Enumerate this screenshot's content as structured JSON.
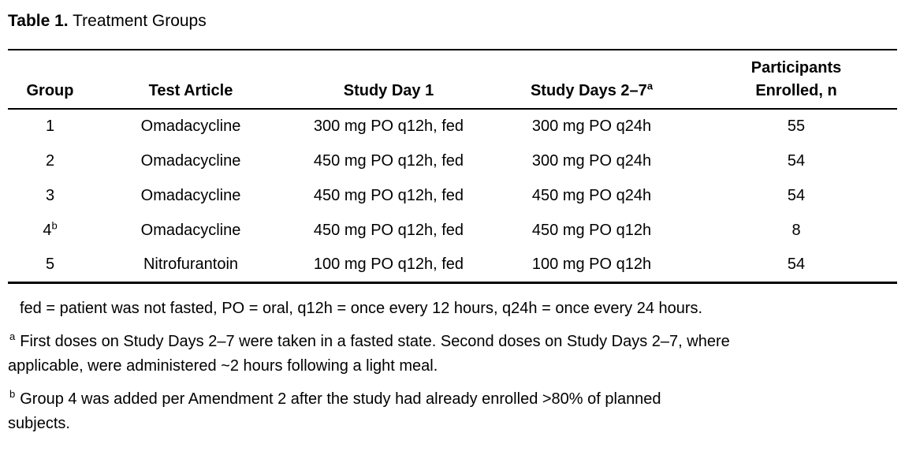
{
  "title": {
    "label": "Table 1.",
    "text": "Treatment Groups"
  },
  "table": {
    "header": {
      "group": "Group",
      "test_article": "Test Article",
      "study_day_1": "Study Day 1",
      "study_days_2_7": "Study Days 2–7",
      "study_days_2_7_sup": "a",
      "participants_line1": "Participants",
      "participants_line2": "Enrolled, n"
    },
    "rows": [
      {
        "group": "1",
        "group_sup": "",
        "test_article": "Omadacycline",
        "study_day_1": "300 mg PO q12h, fed",
        "study_days_2_7": "300 mg PO q24h",
        "participants_enrolled": "55"
      },
      {
        "group": "2",
        "group_sup": "",
        "test_article": "Omadacycline",
        "study_day_1": "450 mg PO q12h, fed",
        "study_days_2_7": "300 mg PO q24h",
        "participants_enrolled": "54"
      },
      {
        "group": "3",
        "group_sup": "",
        "test_article": "Omadacycline",
        "study_day_1": "450 mg PO q12h, fed",
        "study_days_2_7": "450 mg PO q24h",
        "participants_enrolled": "54"
      },
      {
        "group": "4",
        "group_sup": "b",
        "test_article": "Omadacycline",
        "study_day_1": "450 mg PO q12h, fed",
        "study_days_2_7": "450 mg PO q12h",
        "participants_enrolled": "8"
      },
      {
        "group": "5",
        "group_sup": "",
        "test_article": "Nitrofurantoin",
        "study_day_1": "100 mg PO q12h, fed",
        "study_days_2_7": "100 mg PO q12h",
        "participants_enrolled": "54"
      }
    ]
  },
  "footnotes": {
    "abbreviations": "fed = patient was not fasted, PO = oral, q12h = once every 12 hours, q24h = once every 24 hours.",
    "a": {
      "marker": "a",
      "line1": "First doses on Study Days 2–7 were taken in a fasted state. Second doses on Study Days 2–7, where",
      "line2": "applicable, were administered ~2 hours following a light meal."
    },
    "b": {
      "marker": "b",
      "line1": "Group 4 was added per Amendment 2 after the study had already enrolled >80% of planned",
      "line2": "subjects."
    }
  }
}
